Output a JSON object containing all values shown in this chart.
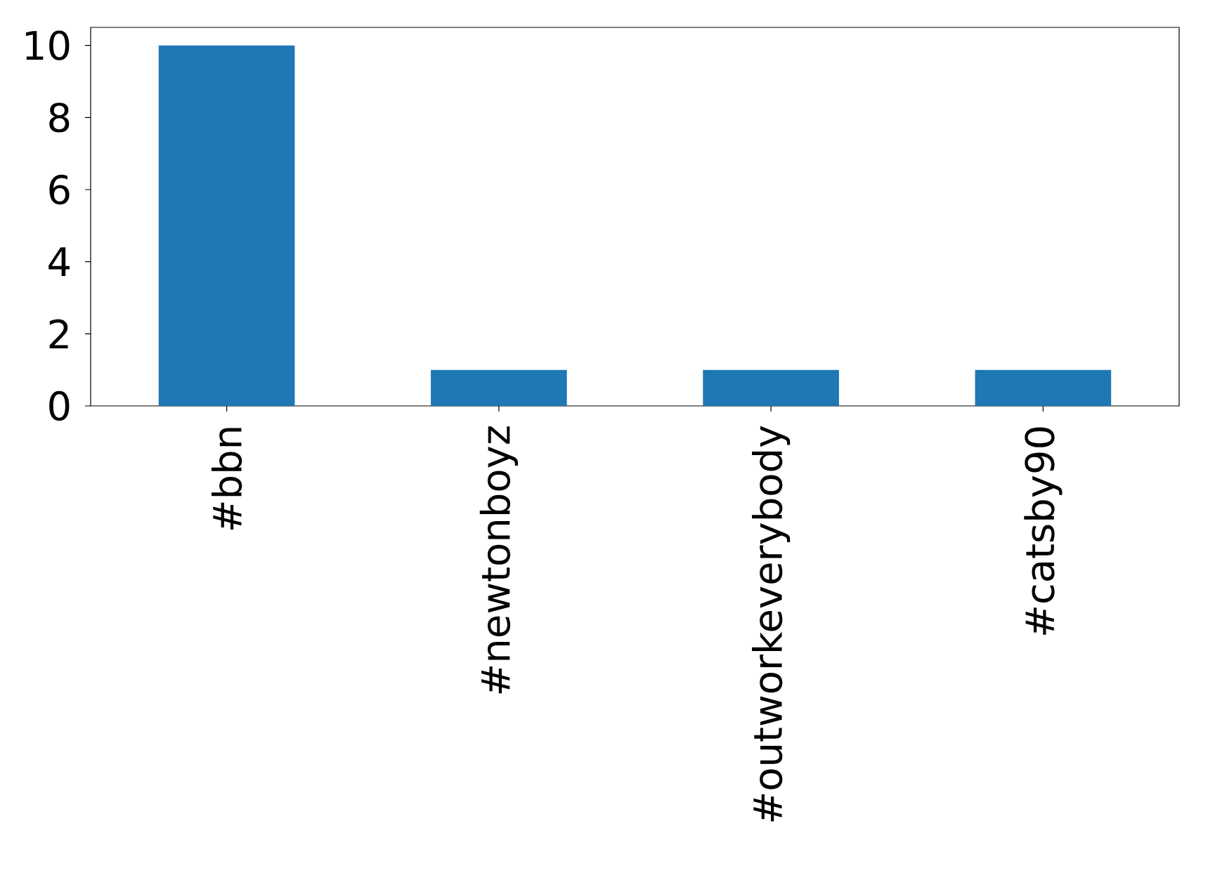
{
  "chart_data": {
    "type": "bar",
    "categories": [
      "#bbn",
      "#newtonboyz",
      "#outworkeverybody",
      "#catsby90"
    ],
    "values": [
      10,
      1,
      1,
      1
    ],
    "color": "#1f77b4",
    "ylim": [
      0,
      10.5
    ],
    "yticks": [
      0,
      2,
      4,
      6,
      8,
      10
    ]
  }
}
